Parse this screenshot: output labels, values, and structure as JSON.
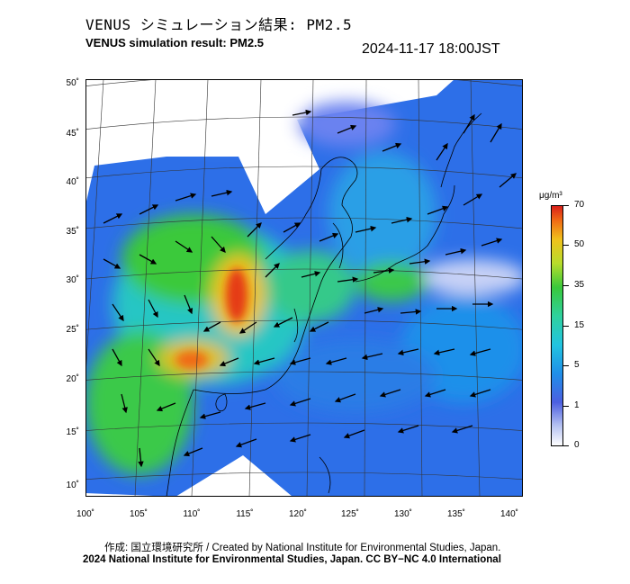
{
  "title_jp": "VENUS シミュレーション結果: PM2.5",
  "title_en": "VENUS simulation result: PM2.5",
  "timestamp": "2024-11-17 18:00JST",
  "map": {
    "lat_labels": [
      "50˚",
      "45˚",
      "40˚",
      "35˚",
      "30˚",
      "25˚",
      "20˚",
      "15˚",
      "10˚"
    ],
    "lon_labels": [
      "100˚",
      "105˚",
      "110˚",
      "115˚",
      "120˚",
      "125˚",
      "130˚",
      "135˚",
      "140˚"
    ]
  },
  "colorbar": {
    "unit": "μg/m³",
    "labels": [
      "70",
      "50",
      "35",
      "15",
      "5",
      "1",
      "0"
    ],
    "colors": [
      "#ffffff",
      "#b8c4f2",
      "#4c5fe0",
      "#1f8fe8",
      "#22c4e0",
      "#2fd19e",
      "#39c93b",
      "#b7dc2c",
      "#f1c21c",
      "#f06a14",
      "#d9201a"
    ]
  },
  "credit_line1": "作成: 国立環境研究所 / Created by National Institute for Environmental Studies, Japan.",
  "credit_line2": "2024 National Institute for Environmental Studies, Japan. CC BY−NC 4.0 International"
}
